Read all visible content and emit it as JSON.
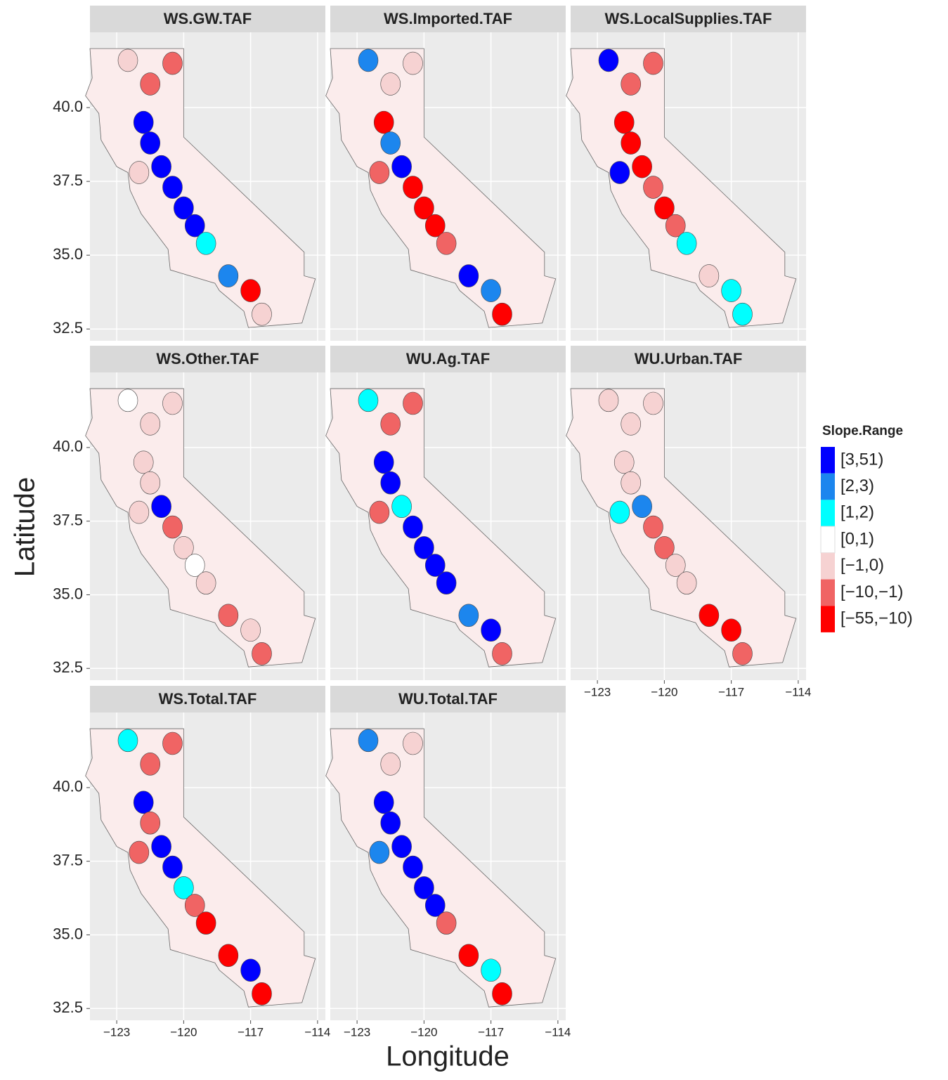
{
  "chart_data": {
    "type": "map",
    "x_label": "Longitude",
    "y_label": "Latitude",
    "facets": [
      "WS.GW.TAF",
      "WS.Imported.TAF",
      "WS.LocalSupplies.TAF",
      "WS.Other.TAF",
      "WU.Ag.TAF",
      "WU.Urban.TAF",
      "WS.Total.TAF",
      "WU.Total.TAF"
    ],
    "xlim": [
      -124.2,
      -113.65
    ],
    "ylim": [
      32.1,
      42.55
    ],
    "xticks": [
      {
        "value": -123,
        "label": "−123"
      },
      {
        "value": -120,
        "label": "−120"
      },
      {
        "value": -117,
        "label": "−117"
      },
      {
        "value": -114,
        "label": "−114"
      }
    ],
    "yticks": [
      32.5,
      {
        "value": 35,
        "label": "35.0"
      },
      37.5,
      {
        "value": 40,
        "label": "40.0"
      }
    ],
    "grid": true,
    "legend": {
      "title": "Slope.Range",
      "entries": [
        {
          "label": "[3,51)",
          "color": "#0000ff"
        },
        {
          "label": "[2,3)",
          "color": "#1c86ee"
        },
        {
          "label": "[1,2)",
          "color": "#00ffff"
        },
        {
          "label": "[0,1)",
          "color": "#ffffff"
        },
        {
          "label": "[−1,0)",
          "color": "#f6d2d2"
        },
        {
          "label": "[−10,−1)",
          "color": "#f06464"
        },
        {
          "label": "[−55,−10)",
          "color": "#ff0000"
        }
      ]
    }
  }
}
